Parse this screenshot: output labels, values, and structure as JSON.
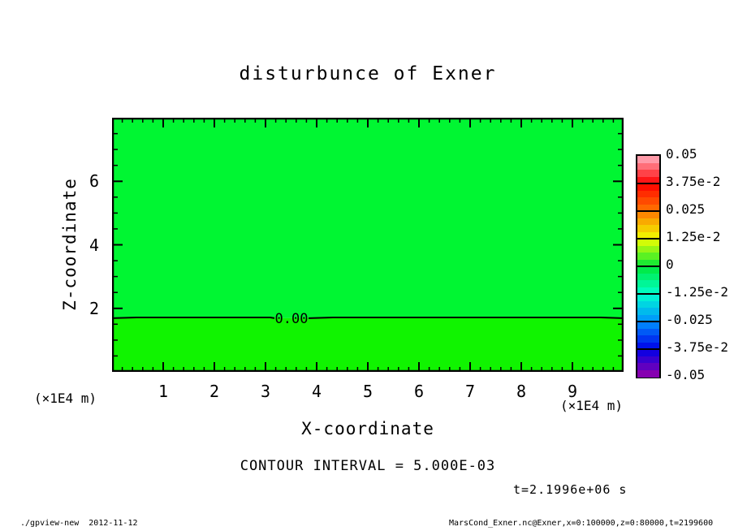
{
  "chart_data": {
    "type": "contour-fill",
    "title": "disturbunce of Exner",
    "xlabel": "X-coordinate",
    "ylabel": "Z-coordinate",
    "x_unit_label": "(×1E4 m)",
    "y_unit_label": "(×1E4 m)",
    "xlim": [
      0,
      10
    ],
    "ylim": [
      0,
      8
    ],
    "x_major_ticks": [
      1,
      2,
      3,
      4,
      5,
      6,
      7,
      8,
      9
    ],
    "x_minor_step": 0.2,
    "y_major_ticks": [
      2,
      4,
      6
    ],
    "y_minor_step": 0.5,
    "fill_above_contour": "#00f632",
    "fill_below_contour": "#10f400",
    "contour": {
      "level_label": "0.00",
      "z_value": 1.69
    },
    "contour_interval_text": "CONTOUR INTERVAL = 5.000E-03",
    "time_annotation": "t=2.1996e+06 s",
    "colorbar": {
      "labels": [
        "0.05",
        "3.75e-2",
        "0.025",
        "1.25e-2",
        "0",
        "-1.25e-2",
        "-0.025",
        "-3.75e-2",
        "-0.05"
      ],
      "anchor_colors": [
        "#ffb0c0",
        "#ff0000",
        "#ff7700",
        "#f0ff00",
        "#00e838",
        "#00ffd0",
        "#0090ff",
        "#0000e8",
        "#9900a8"
      ],
      "bands_per_segment": 4
    }
  },
  "footer": {
    "left": "./gpview-new  2012-11-12",
    "right": "MarsCond_Exner.nc@Exner,x=0:100000,z=0:80000,t=2199600"
  }
}
